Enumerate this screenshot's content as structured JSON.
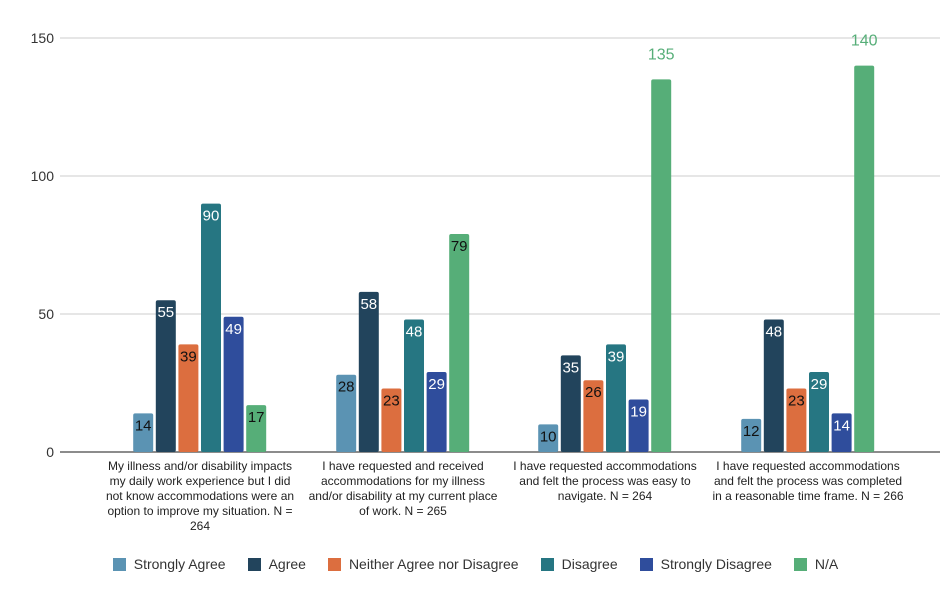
{
  "chart_data": {
    "type": "bar",
    "categories": [
      "My illness and/or disability impacts my daily work experience but I did not know accommodations were an option to improve my situation. N = 264",
      "I have requested and received accommodations for my illness and/or disability at my current place of work. N = 265",
      "I have requested accommodations and felt the process was easy to navigate. N = 264",
      "I have requested accommodations and felt the process was completed in a reasonable time frame.  N = 266"
    ],
    "series": [
      {
        "name": "Strongly Agree",
        "color": "#5b93b3",
        "values": [
          14,
          28,
          10,
          12
        ]
      },
      {
        "name": "Agree",
        "color": "#22445c",
        "values": [
          55,
          58,
          35,
          48
        ]
      },
      {
        "name": "Neither Agree nor Disagree",
        "color": "#dc6e3f",
        "values": [
          39,
          23,
          26,
          23
        ]
      },
      {
        "name": "Disagree",
        "color": "#267682",
        "values": [
          90,
          48,
          39,
          29
        ]
      },
      {
        "name": "Strongly Disagree",
        "color": "#2f4d9c",
        "values": [
          49,
          29,
          19,
          14
        ]
      },
      {
        "name": "N/A",
        "color": "#56ae78",
        "values": [
          17,
          79,
          135,
          140
        ]
      }
    ],
    "yticks": [
      "0",
      "50",
      "100",
      "150"
    ],
    "ylim": [
      0,
      150
    ],
    "grid": true,
    "legend": "bottom",
    "title": "",
    "xlabel": "",
    "ylabel": ""
  }
}
